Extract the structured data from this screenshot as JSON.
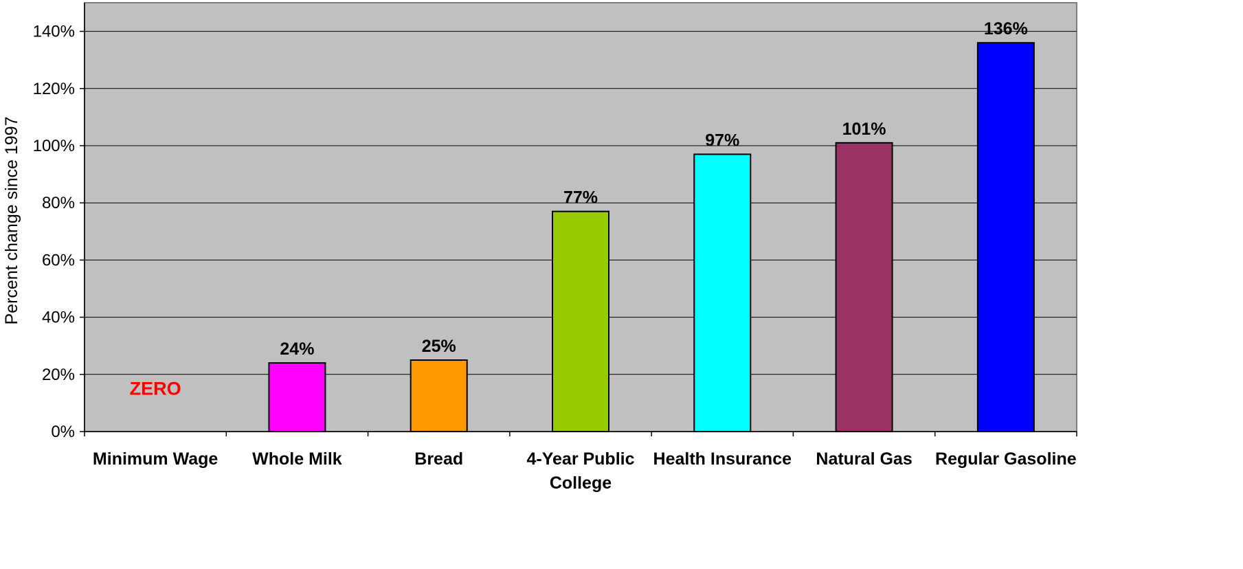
{
  "chart_data": {
    "type": "bar",
    "title": "",
    "xlabel": "",
    "ylabel": "Percent change since 1997",
    "ylim": [
      0,
      150
    ],
    "yticks": [
      0,
      20,
      40,
      60,
      80,
      100,
      120,
      140
    ],
    "ytick_labels": [
      "0%",
      "20%",
      "40%",
      "60%",
      "80%",
      "100%",
      "120%",
      "140%"
    ],
    "grid": true,
    "categories": [
      [
        "Minimum Wage"
      ],
      [
        "Whole Milk"
      ],
      [
        "Bread"
      ],
      [
        "4-Year Public",
        "College"
      ],
      [
        "Health Insurance"
      ],
      [
        "Natural Gas"
      ],
      [
        "Regular Gasoline"
      ]
    ],
    "values": [
      0,
      24,
      25,
      77,
      97,
      101,
      136
    ],
    "data_labels": [
      "ZERO",
      "24%",
      "25%",
      "77%",
      "97%",
      "101%",
      "136%"
    ],
    "colors": [
      "#FF0000",
      "#FF00FF",
      "#FF9900",
      "#99CC00",
      "#00FFFF",
      "#993366",
      "#0000FF"
    ],
    "plot_background": "#C0C0C0"
  }
}
